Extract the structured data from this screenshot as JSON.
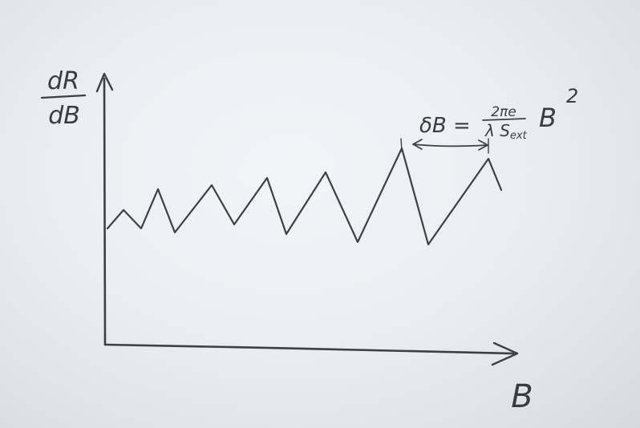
{
  "y_axis_label": {
    "numerator": "dR",
    "denominator": "dB"
  },
  "x_axis_label": "B",
  "annotation": {
    "lhs": "δB =",
    "frac_numerator": "2πe",
    "frac_denominator": "λ S",
    "frac_denominator_sub": "ext",
    "factor": "B",
    "exponent": "2"
  }
}
